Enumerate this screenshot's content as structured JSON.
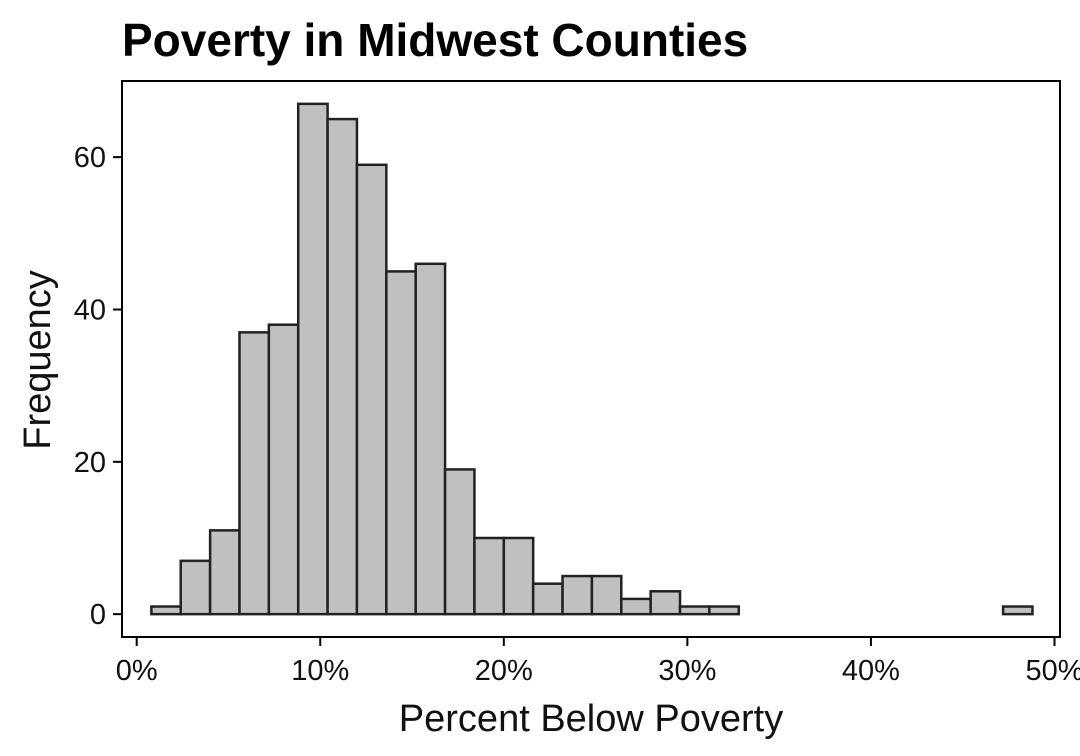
{
  "chart_data": {
    "type": "bar",
    "title": "Poverty in Midwest Counties",
    "xlabel": "Percent Below Poverty",
    "ylabel": "Frequency",
    "xlim": [
      -0.8,
      50.3
    ],
    "ylim": [
      -3,
      70
    ],
    "x_ticks": [
      0,
      10,
      20,
      30,
      40,
      50
    ],
    "x_tick_labels": [
      "0%",
      "10%",
      "20%",
      "30%",
      "40%",
      "50%"
    ],
    "y_ticks": [
      0,
      20,
      40,
      60
    ],
    "y_tick_labels": [
      "0",
      "20",
      "40",
      "60"
    ],
    "bin_edges": [
      0.8,
      2.4,
      4.0,
      5.6,
      7.2,
      8.8,
      10.4,
      12.0,
      13.6,
      15.2,
      16.8,
      18.4,
      20.0,
      21.6,
      23.2,
      24.8,
      26.4,
      28.0,
      29.6,
      31.2,
      32.8,
      34.4,
      36.0,
      37.6,
      39.2,
      40.8,
      42.4,
      44.0,
      45.6,
      47.2,
      48.8
    ],
    "values": [
      1,
      7,
      11,
      37,
      38,
      67,
      65,
      59,
      45,
      46,
      19,
      10,
      10,
      4,
      5,
      5,
      2,
      3,
      1,
      1,
      0,
      0,
      0,
      0,
      0,
      0,
      0,
      0,
      0,
      1
    ],
    "bar_color": "#c0c0c0",
    "edge_color": "#222222",
    "grid": false
  }
}
